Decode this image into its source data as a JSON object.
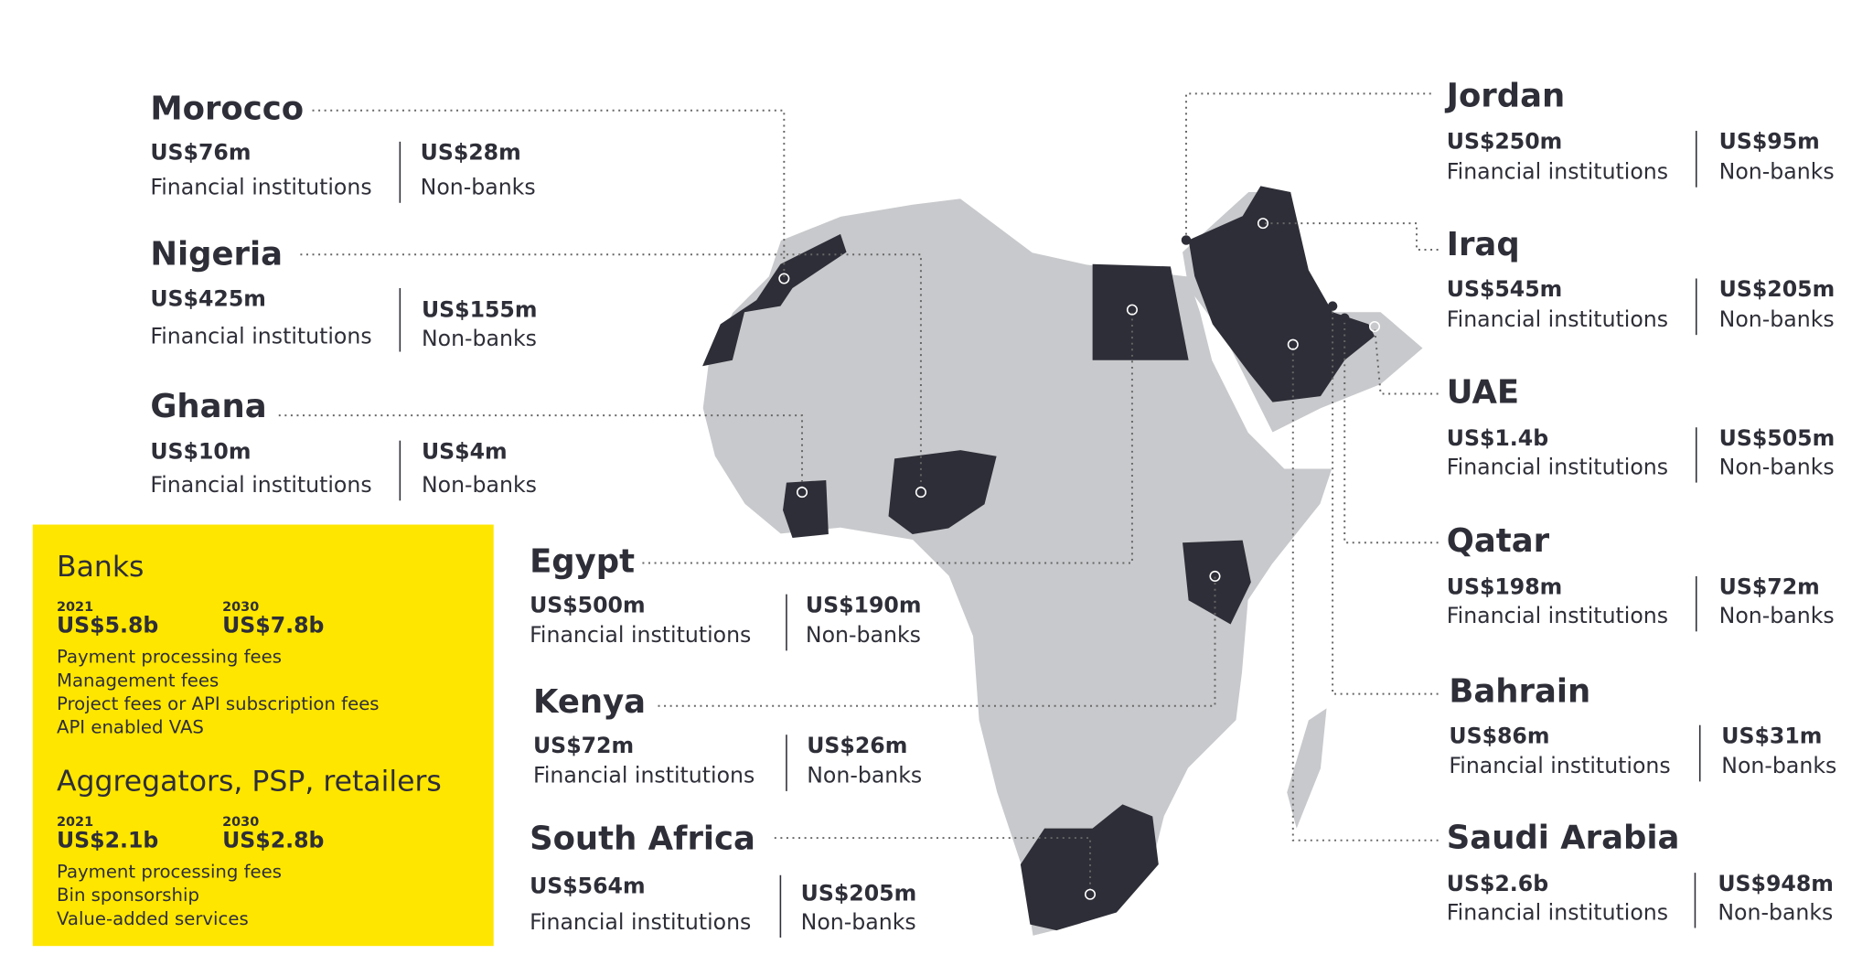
{
  "countries": [
    {
      "name": "Morocco",
      "fi_value": "US$76m",
      "fi_label": "Financial institutions",
      "nb_value": "US$28m",
      "nb_label": "Non-banks"
    },
    {
      "name": "Nigeria",
      "fi_value": "US$425m",
      "fi_label": "Financial institutions",
      "nb_value": "US$155m",
      "nb_label": "Non-banks"
    },
    {
      "name": "Ghana",
      "fi_value": "US$10m",
      "fi_label": "Financial institutions",
      "nb_value": "US$4m",
      "nb_label": "Non-banks"
    },
    {
      "name": "Egypt",
      "fi_value": "US$500m",
      "fi_label": "Financial institutions",
      "nb_value": "US$190m",
      "nb_label": "Non-banks"
    },
    {
      "name": "Kenya",
      "fi_value": "US$72m",
      "fi_label": "Financial institutions",
      "nb_value": "US$26m",
      "nb_label": "Non-banks"
    },
    {
      "name": "South Africa",
      "fi_value": "US$564m",
      "fi_label": "Financial institutions",
      "nb_value": "US$205m",
      "nb_label": "Non-banks"
    },
    {
      "name": "Jordan",
      "fi_value": "US$250m",
      "fi_label": "Financial institutions",
      "nb_value": "US$95m",
      "nb_label": "Non-banks"
    },
    {
      "name": "Iraq",
      "fi_value": "US$545m",
      "fi_label": "Financial institutions",
      "nb_value": "US$205m",
      "nb_label": "Non-banks"
    },
    {
      "name": "UAE",
      "fi_value": "US$1.4b",
      "fi_label": "Financial institutions",
      "nb_value": "US$505m",
      "nb_label": "Non-banks"
    },
    {
      "name": "Qatar",
      "fi_value": "US$198m",
      "fi_label": "Financial institutions",
      "nb_value": "US$72m",
      "nb_label": "Non-banks"
    },
    {
      "name": "Bahrain",
      "fi_value": "US$86m",
      "fi_label": "Financial institutions",
      "nb_value": "US$31m",
      "nb_label": "Non-banks"
    },
    {
      "name": "Saudi Arabia",
      "fi_value": "US$2.6b",
      "fi_label": "Financial institutions",
      "nb_value": "US$948m",
      "nb_label": "Non-banks"
    }
  ],
  "panels": [
    {
      "title": "Banks",
      "year_a": "2021",
      "value_a": "US$5.8b",
      "year_b": "2030",
      "value_b": "US$7.8b",
      "items": [
        "Payment processing fees",
        "Management fees",
        "Project fees or API subscription fees",
        "API enabled VAS"
      ]
    },
    {
      "title": "Aggregators, PSP, retailers",
      "year_a": "2021",
      "value_a": "US$2.1b",
      "year_b": "2030",
      "value_b": "US$2.8b",
      "items": [
        "Payment processing fees",
        "Bin sponsorship",
        "Value-added services"
      ]
    }
  ]
}
